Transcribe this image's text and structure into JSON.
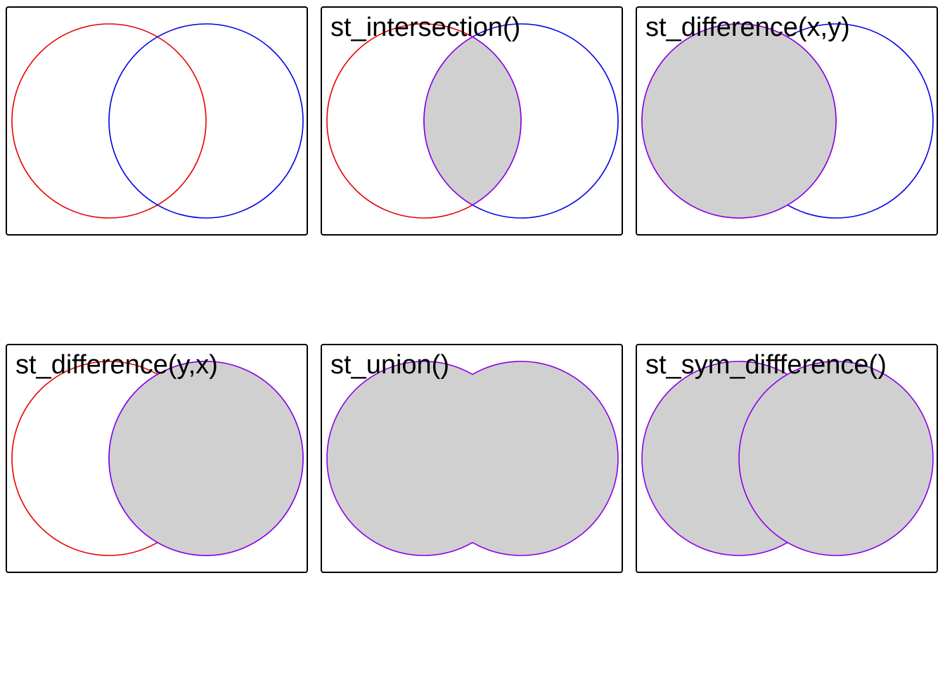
{
  "colors": {
    "x_circle": "#e60000",
    "y_circle": "#0000e6",
    "result_outline": "#8a00e6",
    "result_fill": "#d0d0d0",
    "panel_border": "#000000"
  },
  "panels": [
    {
      "title": "",
      "operation": "none"
    },
    {
      "title": "st_intersection()",
      "operation": "intersection"
    },
    {
      "title": "st_difference(x,y)",
      "operation": "difference_xy"
    },
    {
      "title": "st_difference(y,x)",
      "operation": "difference_yx"
    },
    {
      "title": "st_union()",
      "operation": "union"
    },
    {
      "title": "st_sym_diffference()",
      "operation": "sym_difference"
    }
  ]
}
